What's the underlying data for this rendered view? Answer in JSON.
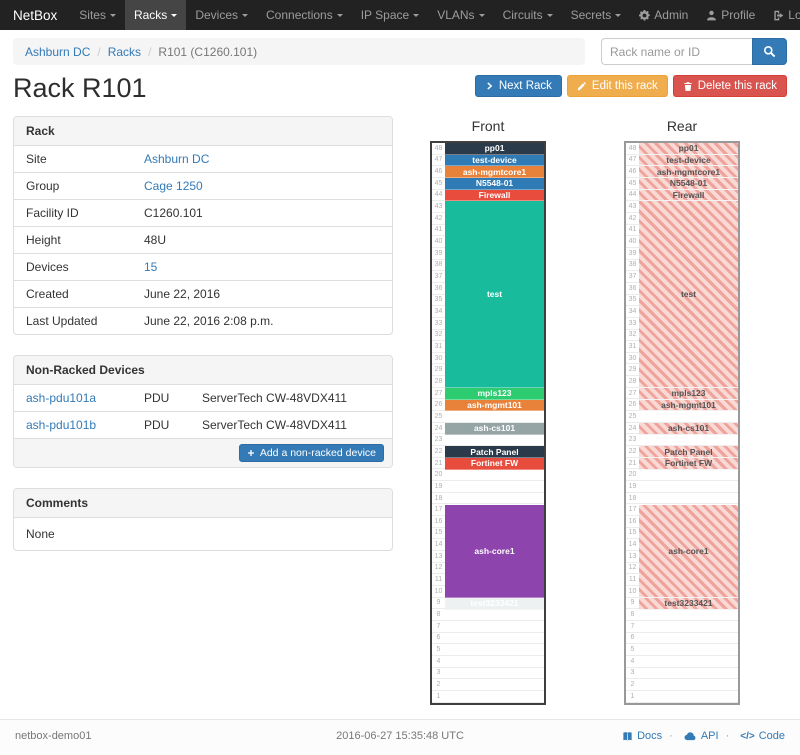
{
  "navbar": {
    "brand": "NetBox",
    "items": [
      {
        "label": "Sites"
      },
      {
        "label": "Racks"
      },
      {
        "label": "Devices"
      },
      {
        "label": "Connections"
      },
      {
        "label": "IP Space"
      },
      {
        "label": "VLANs"
      },
      {
        "label": "Circuits"
      },
      {
        "label": "Secrets"
      }
    ],
    "right": [
      {
        "label": "Admin"
      },
      {
        "label": "Profile"
      },
      {
        "label": "Log out"
      }
    ]
  },
  "breadcrumb": {
    "items": [
      "Ashburn DC",
      "Racks",
      "R101 (C1260.101)"
    ]
  },
  "search": {
    "placeholder": "Rack name or ID"
  },
  "actions": {
    "next": "Next Rack",
    "edit": "Edit this rack",
    "delete": "Delete this rack"
  },
  "page_title": "Rack R101",
  "rack_panel": {
    "title": "Rack",
    "rows": [
      {
        "label": "Site",
        "value": "Ashburn DC"
      },
      {
        "label": "Group",
        "value": "Cage 1250"
      },
      {
        "label": "Facility ID",
        "value": "C1260.101"
      },
      {
        "label": "Height",
        "value": "48U"
      },
      {
        "label": "Devices",
        "value": "15"
      },
      {
        "label": "Created",
        "value": "June 22, 2016"
      },
      {
        "label": "Last Updated",
        "value": "June 22, 2016 2:08 p.m."
      }
    ]
  },
  "nonracked_panel": {
    "title": "Non-Racked Devices",
    "rows": [
      [
        "ash-pdu101a",
        "PDU",
        "ServerTech CW-48VDX411"
      ],
      [
        "ash-pdu101b",
        "PDU",
        "ServerTech CW-48VDX411"
      ]
    ],
    "add_button": "Add a non-racked device"
  },
  "comments_panel": {
    "title": "Comments",
    "body": "None"
  },
  "elevations": {
    "front_title": "Front",
    "rear_title": "Rear",
    "units_total": 48,
    "devices": [
      {
        "top_u": 48,
        "span": 1,
        "label": "pp01",
        "color": "#2b3a4a"
      },
      {
        "top_u": 47,
        "span": 1,
        "label": "test-device",
        "color": "#2f7bb5"
      },
      {
        "top_u": 46,
        "span": 1,
        "label": "ash-mgmtcore1",
        "color": "#e8823a"
      },
      {
        "top_u": 45,
        "span": 1,
        "label": "N5548-01",
        "color": "#2f7bb5"
      },
      {
        "top_u": 44,
        "span": 1,
        "label": "Firewall",
        "color": "#e74c3c"
      },
      {
        "top_u": 43,
        "span": 16,
        "label": "test",
        "color": "#18bc9c"
      },
      {
        "top_u": 27,
        "span": 1,
        "label": "mpls123",
        "color": "#2ecc71"
      },
      {
        "top_u": 26,
        "span": 1,
        "label": "ash-mgmt101",
        "color": "#e8823a"
      },
      {
        "top_u": 24,
        "span": 1,
        "label": "ash-cs101",
        "color": "#95a5a6"
      },
      {
        "top_u": 22,
        "span": 1,
        "label": "Patch Panel",
        "color": "#2b3a4a"
      },
      {
        "top_u": 21,
        "span": 1,
        "label": "Fortinet FW",
        "color": "#e74c3c"
      },
      {
        "top_u": 17,
        "span": 8,
        "label": "ash-core1",
        "color": "#8e44ad"
      },
      {
        "top_u": 9,
        "span": 1,
        "label": "test3233421",
        "color": "#eef1f2",
        "text_color": "#ffffff"
      }
    ]
  },
  "footer": {
    "left": "netbox-demo01",
    "center": "2016-06-27 15:35:48 UTC",
    "links": [
      {
        "label": "Docs"
      },
      {
        "label": "API"
      },
      {
        "label": "Code"
      }
    ]
  }
}
